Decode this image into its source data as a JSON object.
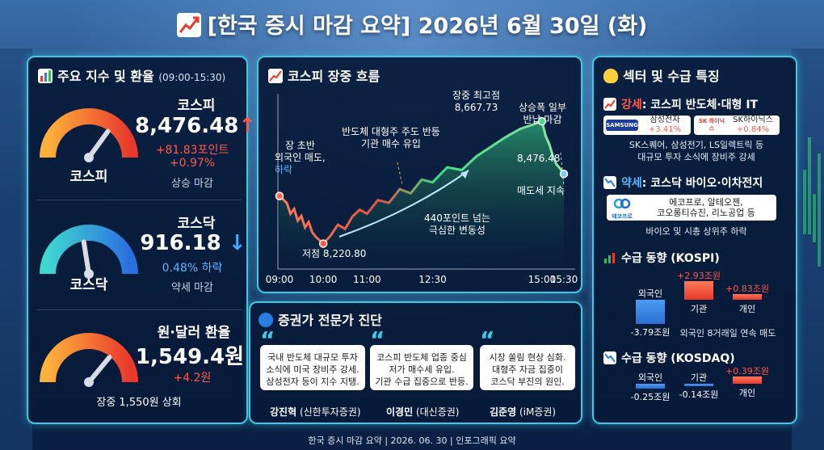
{
  "title": {
    "icon": "chart-increasing-icon",
    "text": "[한국 증시 마감 요약] 2026년 6월 30일 (화)"
  },
  "left_panel": {
    "title": "주요 지수 및 환율",
    "time_range": "(09:00-15:30)",
    "kospi": {
      "gauge_label": "코스피",
      "name": "코스피",
      "value": "8,476.48",
      "arrow": "↑",
      "change_points": "+81.83포인트",
      "change_pct": "+0.97%",
      "status": "상승 마감",
      "gauge_level_pct": 70
    },
    "kosdaq": {
      "gauge_label": "코스닥",
      "name": "코스닥",
      "value": "916.18",
      "arrow": "↓",
      "change_pct": "0.48% 하락",
      "status": "약세 마감",
      "gauge_level_pct": 45
    },
    "fx": {
      "name": "원·달러 환율",
      "value": "1,549.4원",
      "change": "+4.2원",
      "note": "장중 1,550원 상회",
      "gauge_level_pct": 72
    }
  },
  "chart_panel": {
    "title": "코스피 장중 흐름",
    "annotations": {
      "start": [
        "장 초반",
        "외국인 매도,"
      ],
      "start_emph": "하락",
      "low": "저점 8,220.80",
      "semis": [
        "반도체 대형주 주도 반등",
        "기관 매수 유입"
      ],
      "volatility": [
        "440포인트 넘는",
        "극심한 변동성"
      ],
      "high": [
        "장중 최고점",
        "8,667.73"
      ],
      "giveback": [
        "상승폭 일부",
        "반납 마감"
      ],
      "close": "8,476.48",
      "selling": "매도세 지속"
    }
  },
  "chart_data": {
    "type": "line",
    "title": "코스피 장중 흐름",
    "x_ticks": [
      "09:00",
      "10:00",
      "11:00",
      "12:30",
      "15:00",
      "15:30"
    ],
    "points": [
      {
        "t": "09:00",
        "v": 8395
      },
      {
        "t": "09:10",
        "v": 8370
      },
      {
        "t": "09:15",
        "v": 8330
      },
      {
        "t": "09:20",
        "v": 8348
      },
      {
        "t": "09:25",
        "v": 8305
      },
      {
        "t": "09:30",
        "v": 8322
      },
      {
        "t": "09:35",
        "v": 8280
      },
      {
        "t": "09:40",
        "v": 8300
      },
      {
        "t": "09:45",
        "v": 8262
      },
      {
        "t": "09:50",
        "v": 8245
      },
      {
        "t": "10:00",
        "v": 8221
      },
      {
        "t": "10:10",
        "v": 8250
      },
      {
        "t": "10:20",
        "v": 8290
      },
      {
        "t": "10:30",
        "v": 8275
      },
      {
        "t": "10:40",
        "v": 8320
      },
      {
        "t": "10:50",
        "v": 8345
      },
      {
        "t": "11:00",
        "v": 8330
      },
      {
        "t": "11:15",
        "v": 8380
      },
      {
        "t": "11:30",
        "v": 8370
      },
      {
        "t": "11:45",
        "v": 8420
      },
      {
        "t": "12:00",
        "v": 8405
      },
      {
        "t": "12:15",
        "v": 8455
      },
      {
        "t": "12:30",
        "v": 8445
      },
      {
        "t": "12:50",
        "v": 8500
      },
      {
        "t": "13:10",
        "v": 8490
      },
      {
        "t": "13:30",
        "v": 8540
      },
      {
        "t": "13:50",
        "v": 8575
      },
      {
        "t": "14:10",
        "v": 8610
      },
      {
        "t": "14:30",
        "v": 8640
      },
      {
        "t": "15:00",
        "v": 8668
      },
      {
        "t": "15:05",
        "v": 8615
      },
      {
        "t": "15:10",
        "v": 8585
      },
      {
        "t": "15:15",
        "v": 8540
      },
      {
        "t": "15:20",
        "v": 8510
      },
      {
        "t": "15:25",
        "v": 8495
      },
      {
        "t": "15:30",
        "v": 8476
      }
    ],
    "ylim": [
      8140,
      8760
    ]
  },
  "experts": {
    "title": "증권가 전문가 진단",
    "items": [
      {
        "quote": [
          "국내 반도체 대규모 투자",
          "소식에 미국 장비주 강세.",
          "삼성전자 등이 지수 지탱."
        ],
        "name": "강진혁",
        "firm": "(신한투자증권)"
      },
      {
        "quote": [
          "코스피 반도체 업종 중심",
          "저가 매수세 유입.",
          "기관 수급 집중으로 반등."
        ],
        "name": "이경민",
        "firm": "(대신증권)"
      },
      {
        "quote": [
          "시장 쏠림 현상 심화.",
          "대형주 자금 집중이",
          "코스닥 부진의 원인."
        ],
        "name": "김준영",
        "firm": "(iM증권)"
      }
    ]
  },
  "sector": {
    "title": "섹터 및 수급 특징",
    "strong": {
      "label": "강세",
      "text": ": 코스피 반도체·대형 IT",
      "cards": [
        {
          "logo": "SAMSUNG",
          "name": "삼성전자",
          "change": "+3.41%"
        },
        {
          "logo": "SK 하이닉스",
          "name": "SK하이닉스",
          "change": "+0.84%"
        }
      ],
      "note": [
        "SK스퀘어, 삼성전기, LS일렉트릭 등",
        "대규모 투자 소식에 장비주 강세"
      ]
    },
    "weak": {
      "label": "약세",
      "text": ": 코스닥 바이오·이차전지",
      "logo": "에코프로",
      "card": [
        "에코프로, 알테오젠,",
        "코오롱티슈진, 리노공업 등"
      ],
      "note": "바이오 및 시총 상위주 하락"
    },
    "kospi_flow": {
      "title": "수급 동향 (KOSPI)",
      "investors": [
        {
          "name": "외국인",
          "value": "-3.79조원",
          "amount": -3.79
        },
        {
          "name": "기관",
          "value": "+2.93조원",
          "amount": 2.93
        },
        {
          "name": "개인",
          "value": "+0.83조원",
          "amount": 0.83
        }
      ],
      "note": "외국인 8거래일 연속 매도"
    },
    "kosdaq_flow": {
      "title": "수급 동향 (KOSDAQ)",
      "investors": [
        {
          "name": "외국인",
          "value": "-0.25조원",
          "amount": -0.25
        },
        {
          "name": "기관",
          "value": "-0.14조원",
          "amount": -0.14
        },
        {
          "name": "개인",
          "value": "+0.39조원",
          "amount": 0.39
        }
      ]
    }
  },
  "colors": {
    "up": "#ff5a4a",
    "down": "#4aa8ff",
    "line_start": "#ff7a5a",
    "line_end": "#3ddc84",
    "accent": "#3fc9e6"
  },
  "footer": "한국 증시 마감 요약 | 2026. 06. 30 | 인포그래픽 요약"
}
